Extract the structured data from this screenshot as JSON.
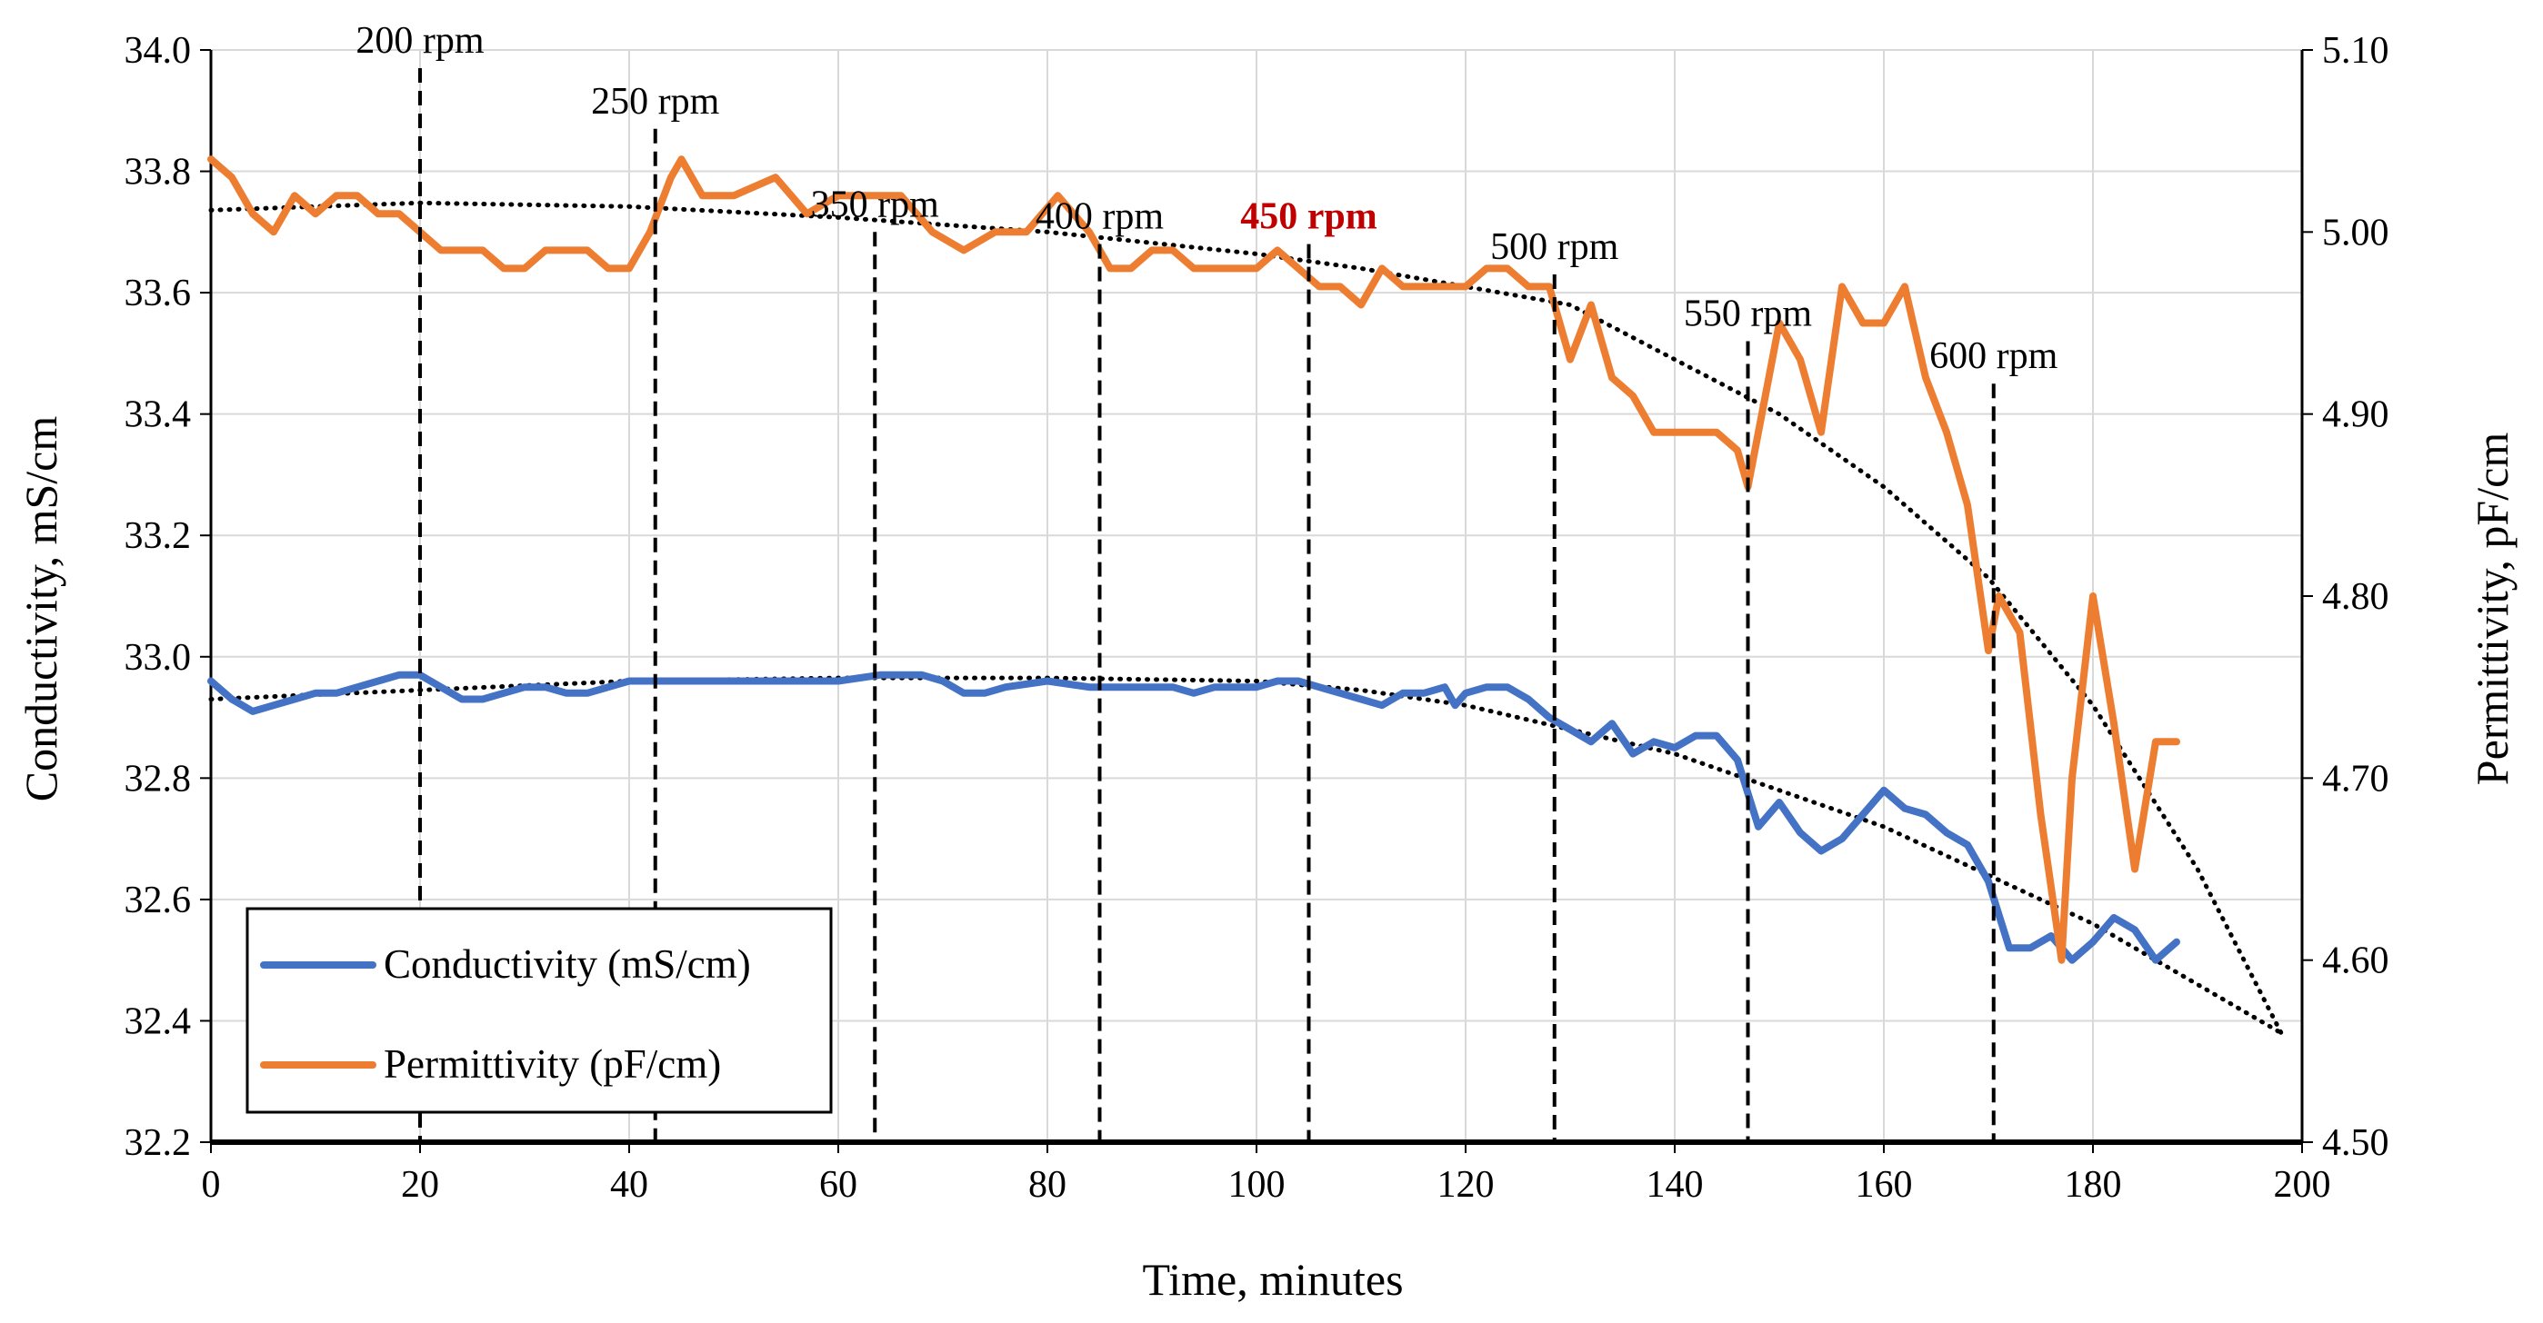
{
  "chart_data": {
    "type": "line",
    "title": "",
    "xlabel": "Time, minutes",
    "ylabel_left": "Conductivity, mS/cm",
    "ylabel_right": "Permittivity, pF/cm",
    "xlim": [
      0,
      200
    ],
    "ylim_left": [
      32.2,
      34.0
    ],
    "ylim_right": [
      4.5,
      5.1
    ],
    "x_ticks": [
      "0",
      "20",
      "40",
      "60",
      "80",
      "100",
      "120",
      "140",
      "160",
      "180",
      "200"
    ],
    "y_left_ticks": [
      "32.2",
      "32.4",
      "32.6",
      "32.8",
      "33.0",
      "33.2",
      "33.4",
      "33.6",
      "33.8",
      "34.0"
    ],
    "y_right_ticks": [
      "4.50",
      "4.60",
      "4.70",
      "4.80",
      "4.90",
      "5.00",
      "5.10"
    ],
    "grid": true,
    "legend_position": "bottom-left",
    "legend": [
      {
        "label": "Conductivity (mS/cm)",
        "color": "#4472C4"
      },
      {
        "label": "Permittivity (pF/cm)",
        "color": "#ED7D31"
      }
    ],
    "rpm_markers": [
      {
        "time": 20,
        "label": "200 rpm",
        "label_level": 34.0,
        "highlight": false
      },
      {
        "time": 42.5,
        "label": "250 rpm",
        "label_level": 33.9,
        "highlight": false
      },
      {
        "time": 63.5,
        "label": "350 rpm",
        "label_level": 33.73,
        "highlight": false
      },
      {
        "time": 85,
        "label": "400 rpm",
        "label_level": 33.71,
        "highlight": false
      },
      {
        "time": 105,
        "label": "450 rpm",
        "label_level": 33.71,
        "highlight": true
      },
      {
        "time": 128.5,
        "label": "500 rpm",
        "label_level": 33.66,
        "highlight": false
      },
      {
        "time": 147,
        "label": "550 rpm",
        "label_level": 33.55,
        "highlight": false
      },
      {
        "time": 170.5,
        "label": "600 rpm",
        "label_level": 33.48,
        "highlight": false
      }
    ],
    "highlight_color": "#C00000",
    "series": [
      {
        "name": "Conductivity (mS/cm)",
        "axis": "left",
        "color": "#4472C4",
        "x": [
          0,
          2,
          4,
          6,
          8,
          10,
          12,
          14,
          16,
          18,
          20,
          22,
          24,
          26,
          28,
          30,
          32,
          34,
          36,
          38,
          40,
          42,
          44,
          46,
          48,
          50,
          55,
          60,
          64,
          66,
          68,
          70,
          72,
          74,
          76,
          80,
          84,
          88,
          92,
          94,
          96,
          100,
          102,
          104,
          106,
          108,
          110,
          112,
          114,
          116,
          118,
          119,
          120,
          122,
          124,
          126,
          128,
          130,
          132,
          134,
          136,
          138,
          140,
          142,
          144,
          146,
          148,
          150,
          152,
          154,
          156,
          158,
          160,
          162,
          164,
          166,
          168,
          170,
          172,
          174,
          176,
          178,
          180,
          182,
          184,
          186,
          188
        ],
        "y": [
          32.96,
          32.93,
          32.91,
          32.92,
          32.93,
          32.94,
          32.94,
          32.95,
          32.96,
          32.97,
          32.97,
          32.95,
          32.93,
          32.93,
          32.94,
          32.95,
          32.95,
          32.94,
          32.94,
          32.95,
          32.96,
          32.96,
          32.96,
          32.96,
          32.96,
          32.96,
          32.96,
          32.96,
          32.97,
          32.97,
          32.97,
          32.96,
          32.94,
          32.94,
          32.95,
          32.96,
          32.95,
          32.95,
          32.95,
          32.94,
          32.95,
          32.95,
          32.96,
          32.96,
          32.95,
          32.94,
          32.93,
          32.92,
          32.94,
          32.94,
          32.95,
          32.92,
          32.94,
          32.95,
          32.95,
          32.93,
          32.9,
          32.88,
          32.86,
          32.89,
          32.84,
          32.86,
          32.85,
          32.87,
          32.87,
          32.83,
          32.72,
          32.76,
          32.71,
          32.68,
          32.7,
          32.74,
          32.78,
          32.75,
          32.74,
          32.71,
          32.69,
          32.63,
          32.52,
          32.52,
          32.54,
          32.5,
          32.53,
          32.57,
          32.55,
          32.5,
          32.53
        ]
      },
      {
        "name": "Permittivity (pF/cm)",
        "axis": "right",
        "color": "#ED7D31",
        "x": [
          0,
          2,
          4,
          6,
          8,
          10,
          12,
          14,
          16,
          18,
          20,
          22,
          24,
          26,
          28,
          30,
          32,
          34,
          36,
          38,
          40,
          42,
          44,
          45,
          47,
          50,
          54,
          57,
          60,
          63,
          66,
          69,
          72,
          75,
          78,
          81,
          84,
          86,
          88,
          90,
          92,
          94,
          96,
          98,
          100,
          102,
          104,
          106,
          108,
          110,
          112,
          114,
          116,
          118,
          120,
          122,
          124,
          126,
          128,
          130,
          132,
          134,
          136,
          138,
          140,
          142,
          144,
          146,
          147,
          148,
          150,
          152,
          154,
          156,
          158,
          160,
          162,
          164,
          166,
          168,
          170,
          171,
          173,
          175,
          177,
          178,
          180,
          182,
          184,
          186,
          188
        ],
        "y": [
          5.04,
          5.03,
          5.01,
          5.0,
          5.02,
          5.01,
          5.02,
          5.02,
          5.01,
          5.01,
          5.0,
          4.99,
          4.99,
          4.99,
          4.98,
          4.98,
          4.99,
          4.99,
          4.99,
          4.98,
          4.98,
          5.0,
          5.03,
          5.04,
          5.02,
          5.02,
          5.03,
          5.01,
          5.02,
          5.02,
          5.02,
          5.0,
          4.99,
          5.0,
          5.0,
          5.02,
          5.0,
          4.98,
          4.98,
          4.99,
          4.99,
          4.98,
          4.98,
          4.98,
          4.98,
          4.99,
          4.98,
          4.97,
          4.97,
          4.96,
          4.98,
          4.97,
          4.97,
          4.97,
          4.97,
          4.98,
          4.98,
          4.97,
          4.97,
          4.93,
          4.96,
          4.92,
          4.91,
          4.89,
          4.89,
          4.89,
          4.89,
          4.88,
          4.86,
          4.89,
          4.95,
          4.93,
          4.89,
          4.97,
          4.95,
          4.95,
          4.97,
          4.92,
          4.89,
          4.85,
          4.77,
          4.8,
          4.78,
          4.68,
          4.6,
          4.7,
          4.8,
          4.73,
          4.65,
          4.72,
          4.72
        ]
      },
      {
        "name": "Conductivity trend",
        "axis": "left",
        "style": "dotted",
        "x": [
          0,
          20,
          40,
          60,
          80,
          100,
          110,
          120,
          130,
          140,
          150,
          160,
          170,
          180,
          190,
          198
        ],
        "y": [
          32.93,
          32.945,
          32.96,
          32.965,
          32.965,
          32.96,
          32.945,
          32.92,
          32.88,
          32.84,
          32.78,
          32.72,
          32.64,
          32.56,
          32.46,
          32.38
        ]
      },
      {
        "name": "Permittivity trend",
        "axis": "right",
        "style": "dotted",
        "x": [
          0,
          20,
          40,
          60,
          80,
          100,
          110,
          120,
          130,
          140,
          150,
          160,
          170,
          180,
          190,
          198
        ],
        "y": [
          5.012,
          5.016,
          5.014,
          5.008,
          5.0,
          4.988,
          4.98,
          4.97,
          4.96,
          4.93,
          4.9,
          4.86,
          4.81,
          4.74,
          4.65,
          4.56
        ]
      }
    ]
  }
}
